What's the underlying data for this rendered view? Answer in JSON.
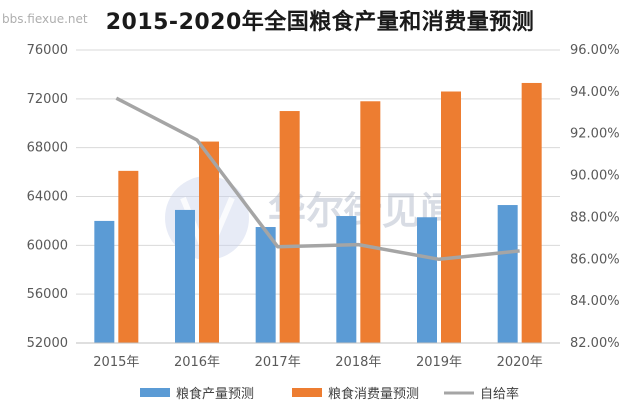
{
  "watermark": {
    "corner_text": "bbs.fiexue.net",
    "center_text": "华尔街见闻"
  },
  "chart_data": {
    "type": "bar",
    "title": "2015-2020年全国粮食产量和消费量预测",
    "categories": [
      "2015年",
      "2016年",
      "2017年",
      "2018年",
      "2019年",
      "2020年"
    ],
    "series": [
      {
        "name": "粮食产量预测",
        "type": "bar",
        "axis": "left",
        "color": "#5b9bd5",
        "values": [
          62000,
          62900,
          61500,
          62400,
          62300,
          63300
        ]
      },
      {
        "name": "粮食消费量预测",
        "type": "bar",
        "axis": "left",
        "color": "#ed7d31",
        "values": [
          66100,
          68500,
          71000,
          71800,
          72600,
          73300
        ]
      },
      {
        "name": "自给率",
        "type": "line",
        "axis": "right",
        "color": "#a5a5a5",
        "values": [
          93.7,
          91.7,
          86.6,
          86.7,
          86.0,
          86.4
        ]
      }
    ],
    "y_left": {
      "min": 52000,
      "max": 76000,
      "step": 4000,
      "ticks": [
        "52000",
        "56000",
        "60000",
        "64000",
        "68000",
        "72000",
        "76000"
      ]
    },
    "y_right": {
      "min": 82,
      "max": 96,
      "step": 2,
      "ticks": [
        "82.00%",
        "84.00%",
        "86.00%",
        "88.00%",
        "90.00%",
        "92.00%",
        "94.00%",
        "96.00%"
      ]
    },
    "legend": "bottom",
    "grid": true
  }
}
